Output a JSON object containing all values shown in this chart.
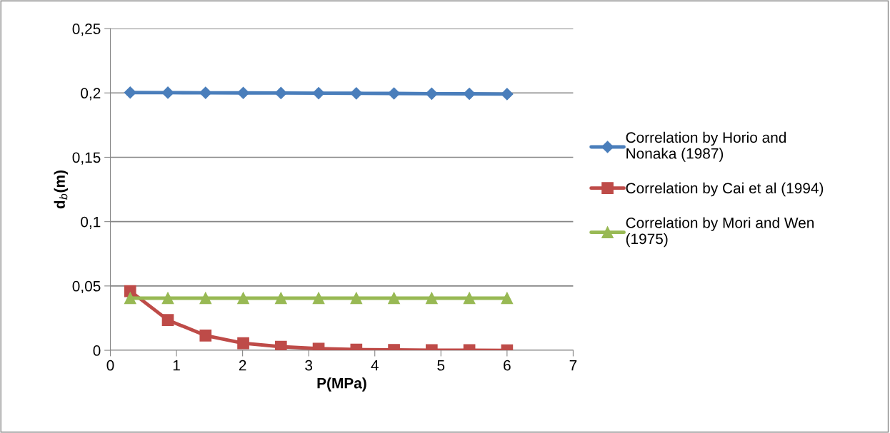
{
  "chart_data": {
    "type": "line",
    "xlabel": "P(MPa)",
    "ylabel": "d$_{b}$(m)",
    "xlim": [
      0,
      7
    ],
    "xticks": [
      0,
      1,
      2,
      3,
      4,
      5,
      6,
      7
    ],
    "ylim": [
      0,
      0.25
    ],
    "yticks": [
      {
        "value": 0,
        "label": "0"
      },
      {
        "value": 0.05,
        "label": "0,05"
      },
      {
        "value": 0.1,
        "label": "0,1"
      },
      {
        "value": 0.15,
        "label": "0,15"
      },
      {
        "value": 0.2,
        "label": "0,2"
      },
      {
        "value": 0.25,
        "label": "0,25"
      }
    ],
    "x": [
      0.3,
      0.87,
      1.44,
      2.01,
      2.58,
      3.15,
      3.72,
      4.29,
      4.86,
      5.43,
      6.0
    ],
    "grid": "y",
    "legend": "right",
    "series": [
      {
        "name": "Correlation by Horio and\nNonaka (1987)",
        "color": "#4a7ebb",
        "marker": "diamond",
        "values": [
          0.2003,
          0.2002,
          0.2001,
          0.2,
          0.1999,
          0.1998,
          0.1997,
          0.1996,
          0.1994,
          0.1993,
          0.1991
        ]
      },
      {
        "name": "Correlation by Cai et al (1994)",
        "color": "#be4b48",
        "marker": "square",
        "values": [
          0.046,
          0.0235,
          0.0115,
          0.0055,
          0.0028,
          0.0013,
          0.0006,
          0.0003,
          0.0001,
          0.0001,
          0.0
        ]
      },
      {
        "name": "Correlation by Mori and Wen\n(1975)",
        "color": "#98b954",
        "marker": "triangle",
        "values": [
          0.0405,
          0.0405,
          0.0405,
          0.0405,
          0.0405,
          0.0405,
          0.0405,
          0.0405,
          0.0405,
          0.0405,
          0.0405
        ]
      }
    ]
  }
}
